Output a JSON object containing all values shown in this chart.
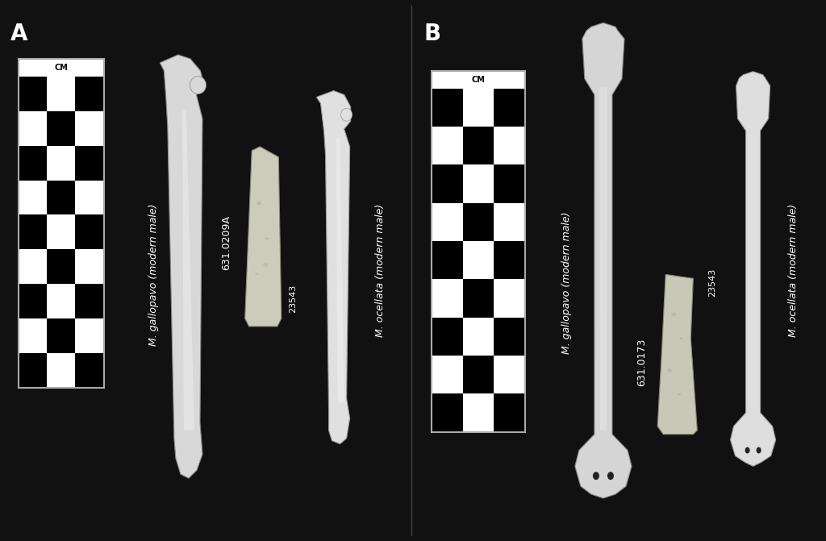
{
  "background_color": "#111111",
  "panel_A_label": "A",
  "panel_B_label": "B",
  "label_color": "#ffffff",
  "label_fontsize": 20,
  "label_fontweight": "bold",
  "scale_bar_label": "CM",
  "specimen_A_label1": "M. gallopavo (modern male)",
  "specimen_A_fragment": "631.0209A",
  "specimen_A_num": "23543",
  "specimen_A_label2": "M. ocellata (modern male)",
  "specimen_B_label1": "M. gallopavo (modern male)",
  "specimen_B_fragment": "631.0173",
  "specimen_B_num": "23543",
  "specimen_B_label2": "M. ocellata (modern male)",
  "text_color": "#ffffff",
  "text_fontsize": 9,
  "checker_rows": 9,
  "checker_cols": 3
}
